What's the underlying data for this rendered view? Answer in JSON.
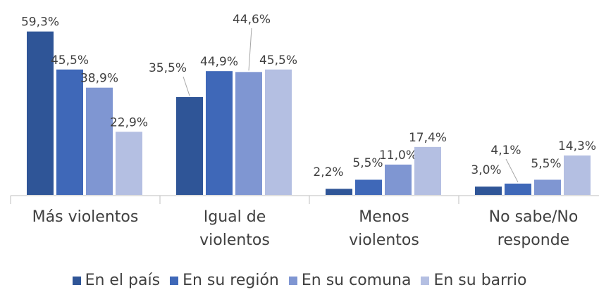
{
  "chart_data": {
    "type": "bar",
    "categories": [
      "Más violentos",
      "Igual de\nviolentos",
      "Menos\nviolentos",
      "No sabe/No\nresponde"
    ],
    "series": [
      {
        "name": "En el país",
        "color": "#2f5597",
        "values": [
          59.3,
          35.5,
          2.2,
          3.0
        ],
        "value_labels": [
          "59,3%",
          "35,5%",
          "2,2%",
          "3,0%"
        ]
      },
      {
        "name": "En su región",
        "color": "#3f68b8",
        "values": [
          45.5,
          44.9,
          5.5,
          4.1
        ],
        "value_labels": [
          "45,5%",
          "44,9%",
          "5,5%",
          "4,1%"
        ]
      },
      {
        "name": "En su comuna",
        "color": "#7f96d2",
        "values": [
          38.9,
          44.6,
          11.0,
          5.5
        ],
        "value_labels": [
          "38,9%",
          "44,6%",
          "11,0%",
          "5,5%"
        ]
      },
      {
        "name": "En su barrio",
        "color": "#b4bfe2",
        "values": [
          22.9,
          45.5,
          17.4,
          14.3
        ],
        "value_labels": [
          "22,9%",
          "45,5%",
          "17,4%",
          "14,3%"
        ]
      }
    ],
    "ylim": [
      0,
      60
    ]
  }
}
